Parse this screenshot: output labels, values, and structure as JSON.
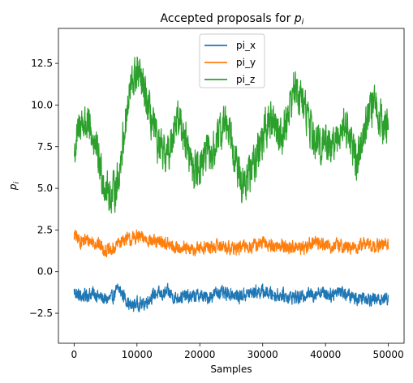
{
  "chart_data": {
    "type": "line",
    "title_prefix": "Accepted proposals for ",
    "title_math_base": "p",
    "title_math_sub": "i",
    "xlabel": "Samples",
    "ylabel_base": "p",
    "ylabel_sub": "i",
    "xlim": [
      -2500,
      52500
    ],
    "ylim": [
      -4.3,
      14.6
    ],
    "xticks": [
      0,
      10000,
      20000,
      30000,
      40000,
      50000
    ],
    "xtick_labels": [
      "0",
      "10000",
      "20000",
      "30000",
      "40000",
      "50000"
    ],
    "yticks": [
      -2.5,
      0.0,
      2.5,
      5.0,
      7.5,
      10.0,
      12.5
    ],
    "ytick_labels": [
      "−2.5",
      "0.0",
      "2.5",
      "5.0",
      "7.5",
      "10.0",
      "12.5"
    ],
    "grid": false,
    "legend_position": "upper-center",
    "series": [
      {
        "name": "pi_x",
        "color": "#1f77b4",
        "noise": 0.55,
        "x": [
          0,
          1000,
          2000,
          3000,
          4000,
          5000,
          6000,
          7000,
          8000,
          9000,
          10000,
          11000,
          12000,
          13000,
          14000,
          15000,
          16000,
          17000,
          18000,
          19000,
          20000,
          21000,
          22000,
          23000,
          24000,
          25000,
          26000,
          27000,
          28000,
          29000,
          30000,
          31000,
          32000,
          33000,
          34000,
          35000,
          36000,
          37000,
          38000,
          39000,
          40000,
          41000,
          42000,
          43000,
          44000,
          45000,
          46000,
          47000,
          48000,
          49000,
          50000
        ],
        "values": [
          -1.2,
          -1.5,
          -1.4,
          -1.3,
          -1.5,
          -1.7,
          -1.6,
          -1.0,
          -1.5,
          -2.1,
          -1.9,
          -2.0,
          -1.6,
          -1.3,
          -1.4,
          -1.2,
          -1.6,
          -1.5,
          -1.5,
          -1.5,
          -1.4,
          -1.6,
          -1.4,
          -1.2,
          -1.4,
          -1.3,
          -1.5,
          -1.4,
          -1.3,
          -1.2,
          -1.2,
          -1.3,
          -1.4,
          -1.4,
          -1.5,
          -1.5,
          -1.6,
          -1.3,
          -1.4,
          -1.2,
          -1.3,
          -1.4,
          -1.1,
          -1.3,
          -1.5,
          -1.6,
          -1.5,
          -1.6,
          -1.7,
          -1.6,
          -1.6
        ]
      },
      {
        "name": "pi_y",
        "color": "#ff7f0e",
        "noise": 0.55,
        "x": [
          0,
          1000,
          2000,
          3000,
          4000,
          5000,
          6000,
          7000,
          8000,
          9000,
          10000,
          11000,
          12000,
          13000,
          14000,
          15000,
          16000,
          17000,
          18000,
          19000,
          20000,
          21000,
          22000,
          23000,
          24000,
          25000,
          26000,
          27000,
          28000,
          29000,
          30000,
          31000,
          32000,
          33000,
          34000,
          35000,
          36000,
          37000,
          38000,
          39000,
          40000,
          41000,
          42000,
          43000,
          44000,
          45000,
          46000,
          47000,
          48000,
          49000,
          50000
        ],
        "values": [
          2.2,
          1.8,
          1.9,
          1.8,
          1.6,
          1.3,
          1.2,
          1.7,
          2.0,
          1.9,
          2.1,
          2.0,
          1.9,
          1.7,
          1.8,
          1.6,
          1.4,
          1.5,
          1.3,
          1.3,
          1.4,
          1.5,
          1.4,
          1.6,
          1.5,
          1.4,
          1.4,
          1.5,
          1.5,
          1.6,
          1.7,
          1.6,
          1.5,
          1.6,
          1.4,
          1.5,
          1.4,
          1.5,
          1.8,
          1.7,
          1.6,
          1.5,
          1.6,
          1.5,
          1.4,
          1.4,
          1.7,
          1.6,
          1.5,
          1.6,
          1.7
        ]
      },
      {
        "name": "pi_z",
        "color": "#2ca02c",
        "noise": 1.6,
        "x": [
          0,
          1000,
          2000,
          3000,
          4000,
          5000,
          6000,
          7000,
          8000,
          9000,
          10000,
          11000,
          12000,
          13000,
          14000,
          15000,
          16000,
          17000,
          18000,
          19000,
          20000,
          21000,
          22000,
          23000,
          24000,
          25000,
          26000,
          27000,
          28000,
          29000,
          30000,
          31000,
          32000,
          33000,
          34000,
          35000,
          36000,
          37000,
          38000,
          39000,
          40000,
          41000,
          42000,
          43000,
          44000,
          45000,
          46000,
          47000,
          48000,
          49000,
          50000
        ],
        "values": [
          7.0,
          9.0,
          8.8,
          8.0,
          6.5,
          5.0,
          4.5,
          5.5,
          8.5,
          11.0,
          12.0,
          11.0,
          9.5,
          8.0,
          7.0,
          7.0,
          9.0,
          9.0,
          7.5,
          6.0,
          6.5,
          7.0,
          7.0,
          8.0,
          9.0,
          8.5,
          6.0,
          5.0,
          6.0,
          7.0,
          8.0,
          9.0,
          9.0,
          8.0,
          9.5,
          11.0,
          10.5,
          9.5,
          8.0,
          7.5,
          8.0,
          7.5,
          8.0,
          9.0,
          8.0,
          6.5,
          8.5,
          9.5,
          10.0,
          9.0,
          8.5
        ]
      }
    ]
  }
}
